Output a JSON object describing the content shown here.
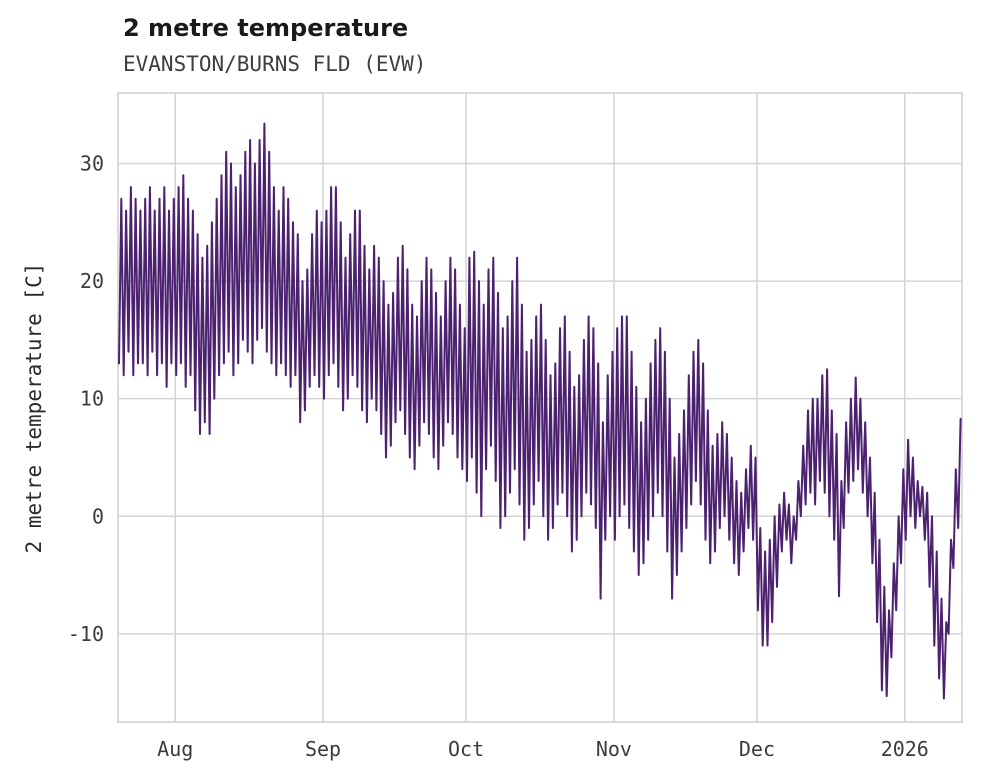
{
  "header": {
    "title": "2 metre temperature",
    "subtitle": "EVANSTON/BURNS FLD (EVW)"
  },
  "chart_data": {
    "type": "line",
    "title": "2 metre temperature",
    "subtitle": "EVANSTON/BURNS FLD (EVW)",
    "xlabel": "",
    "ylabel": "2 metre temperature [C]",
    "grid": true,
    "legend": "none",
    "line_color": "#4c2270",
    "grid_color": "#d4d4d4",
    "tick_color": "#3c3c3c",
    "ylim": [
      -17.5,
      36
    ],
    "yticks": [
      -10,
      0,
      10,
      20,
      30
    ],
    "x_tick_labels": [
      "Aug",
      "Sep",
      "Oct",
      "Nov",
      "Dec",
      "2026"
    ],
    "x_tick_days": [
      12,
      43,
      73,
      104,
      134,
      165
    ],
    "x_domain_days": 177,
    "series": [
      {
        "name": "2 metre temperature",
        "daily_low": [
          13,
          12,
          14,
          12,
          13,
          13,
          12,
          14,
          12,
          13,
          11,
          13,
          12,
          13,
          11,
          12,
          9,
          7,
          8,
          7,
          10,
          12,
          13,
          14,
          12,
          13,
          15,
          14,
          13,
          15,
          16,
          14,
          13,
          12,
          13,
          12,
          11,
          12,
          8,
          9,
          11,
          12,
          11,
          10,
          12,
          13,
          11,
          9,
          10,
          12,
          11,
          9,
          8,
          10,
          9,
          7,
          5,
          6,
          8,
          9,
          7,
          5,
          4,
          6,
          8,
          7,
          5,
          4,
          6,
          8,
          7,
          5,
          4,
          3,
          5,
          2,
          0,
          4,
          6,
          3,
          -1,
          0,
          2,
          4,
          1,
          -2,
          -1,
          1,
          3,
          0,
          -2,
          -1,
          1,
          2,
          0,
          -3,
          -2,
          0,
          2,
          1,
          -1,
          -7,
          -2,
          0,
          -2,
          0,
          1,
          -1,
          -3,
          -5,
          -4,
          -2,
          0,
          2,
          0,
          -3,
          -7,
          -5,
          -3,
          -1,
          1,
          3,
          1,
          -2,
          -4,
          -3,
          -1,
          0,
          -2,
          -4,
          -5,
          -3,
          -1,
          -2,
          -8,
          -11,
          -11,
          -9,
          -6,
          -3,
          -2,
          -4,
          -2,
          0,
          1,
          2,
          1,
          3,
          2,
          0,
          -2,
          -6.8,
          -1,
          2,
          3,
          4,
          2,
          0,
          -4,
          -9,
          -14.8,
          -15.3,
          -12,
          -8,
          -4,
          -2,
          0,
          -1,
          0,
          -2,
          -6,
          -11,
          -13.8,
          -15.5,
          -10,
          -4.4,
          -1
        ],
        "daily_high": [
          27,
          26,
          28,
          27,
          26,
          27,
          28,
          26,
          27,
          28,
          26,
          27,
          28,
          29,
          27,
          26,
          24,
          22,
          23,
          25,
          27,
          29,
          31,
          30,
          28,
          29,
          31,
          32,
          30,
          32,
          33.4,
          31,
          28,
          26,
          28,
          27,
          25,
          24,
          20,
          21,
          24,
          26,
          25,
          26,
          28,
          28,
          25,
          22,
          24,
          26,
          26,
          23,
          21,
          23,
          22,
          20,
          18,
          19,
          22,
          23,
          21,
          18,
          17,
          20,
          22,
          21,
          19,
          17,
          20,
          22,
          21,
          18,
          16,
          22,
          22.5,
          20,
          18,
          21,
          22,
          19,
          16,
          17,
          20,
          22,
          18,
          14,
          15,
          17,
          18,
          15,
          12,
          13,
          16,
          17,
          14,
          11,
          12,
          15,
          17,
          16,
          13,
          8,
          12,
          14,
          16,
          17,
          17,
          14,
          11,
          8,
          10,
          13,
          15,
          16,
          14,
          10,
          5,
          7,
          9,
          12,
          14,
          15,
          13,
          9,
          6,
          7,
          8,
          7,
          5,
          3,
          2,
          4,
          6,
          5,
          -1,
          -3,
          -2,
          0,
          1,
          2,
          1,
          0,
          3,
          6,
          9,
          10,
          10,
          12,
          12.5,
          9,
          7,
          3,
          8,
          10,
          11.8,
          10,
          8,
          5,
          2,
          -2,
          -6,
          -8,
          -4,
          0,
          4,
          6.5,
          5,
          3,
          2.5,
          2,
          0,
          -3,
          -7,
          -9,
          -2,
          4,
          8.3
        ]
      }
    ]
  }
}
